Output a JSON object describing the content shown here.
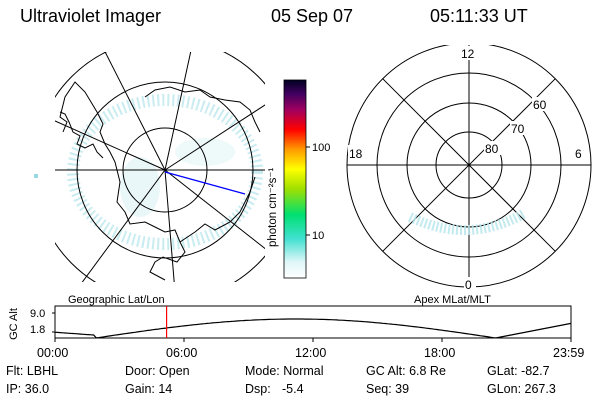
{
  "header": {
    "title": "Ultraviolet Imager",
    "date": "05 Sep 07",
    "time": "05:11:33 UT"
  },
  "colorbar": {
    "label": "photon cm⁻²s⁻¹",
    "ticks": [
      "100",
      "10"
    ]
  },
  "polar": {
    "lat_labels": [
      "60",
      "70",
      "80"
    ],
    "mlt_labels": {
      "top": "12",
      "left": "18",
      "right": "6",
      "bottom": "0"
    }
  },
  "orbit": {
    "panel_label_left": "Geographic Lat/Lon",
    "panel_label_right": "Apex MLat/MLT",
    "ylabel": "GC Alt",
    "y_ticks": [
      "9.0",
      "1.8"
    ],
    "x_ticks": [
      "00:00",
      "06:00",
      "12:00",
      "18:00",
      "23:59"
    ],
    "current_time_hours": 5.19
  },
  "info": {
    "filter": "Flt: LBHL",
    "door": "Door: Open",
    "mode": "Mode: Normal",
    "gc_alt": "GC Alt: 6.8 Re",
    "glat": "GLat: -82.7",
    "ip": "IP: 36.0",
    "gain": "Gain: 14",
    "dsp_label": "Dsp:",
    "dsp_value": "-5.4",
    "seq": "Seq: 39",
    "glon": "GLon: 267.3"
  },
  "colors": {
    "orbit_marker": "#ff0000",
    "meridian_line": "#0000ff",
    "aurora": "#9ad8e0"
  }
}
